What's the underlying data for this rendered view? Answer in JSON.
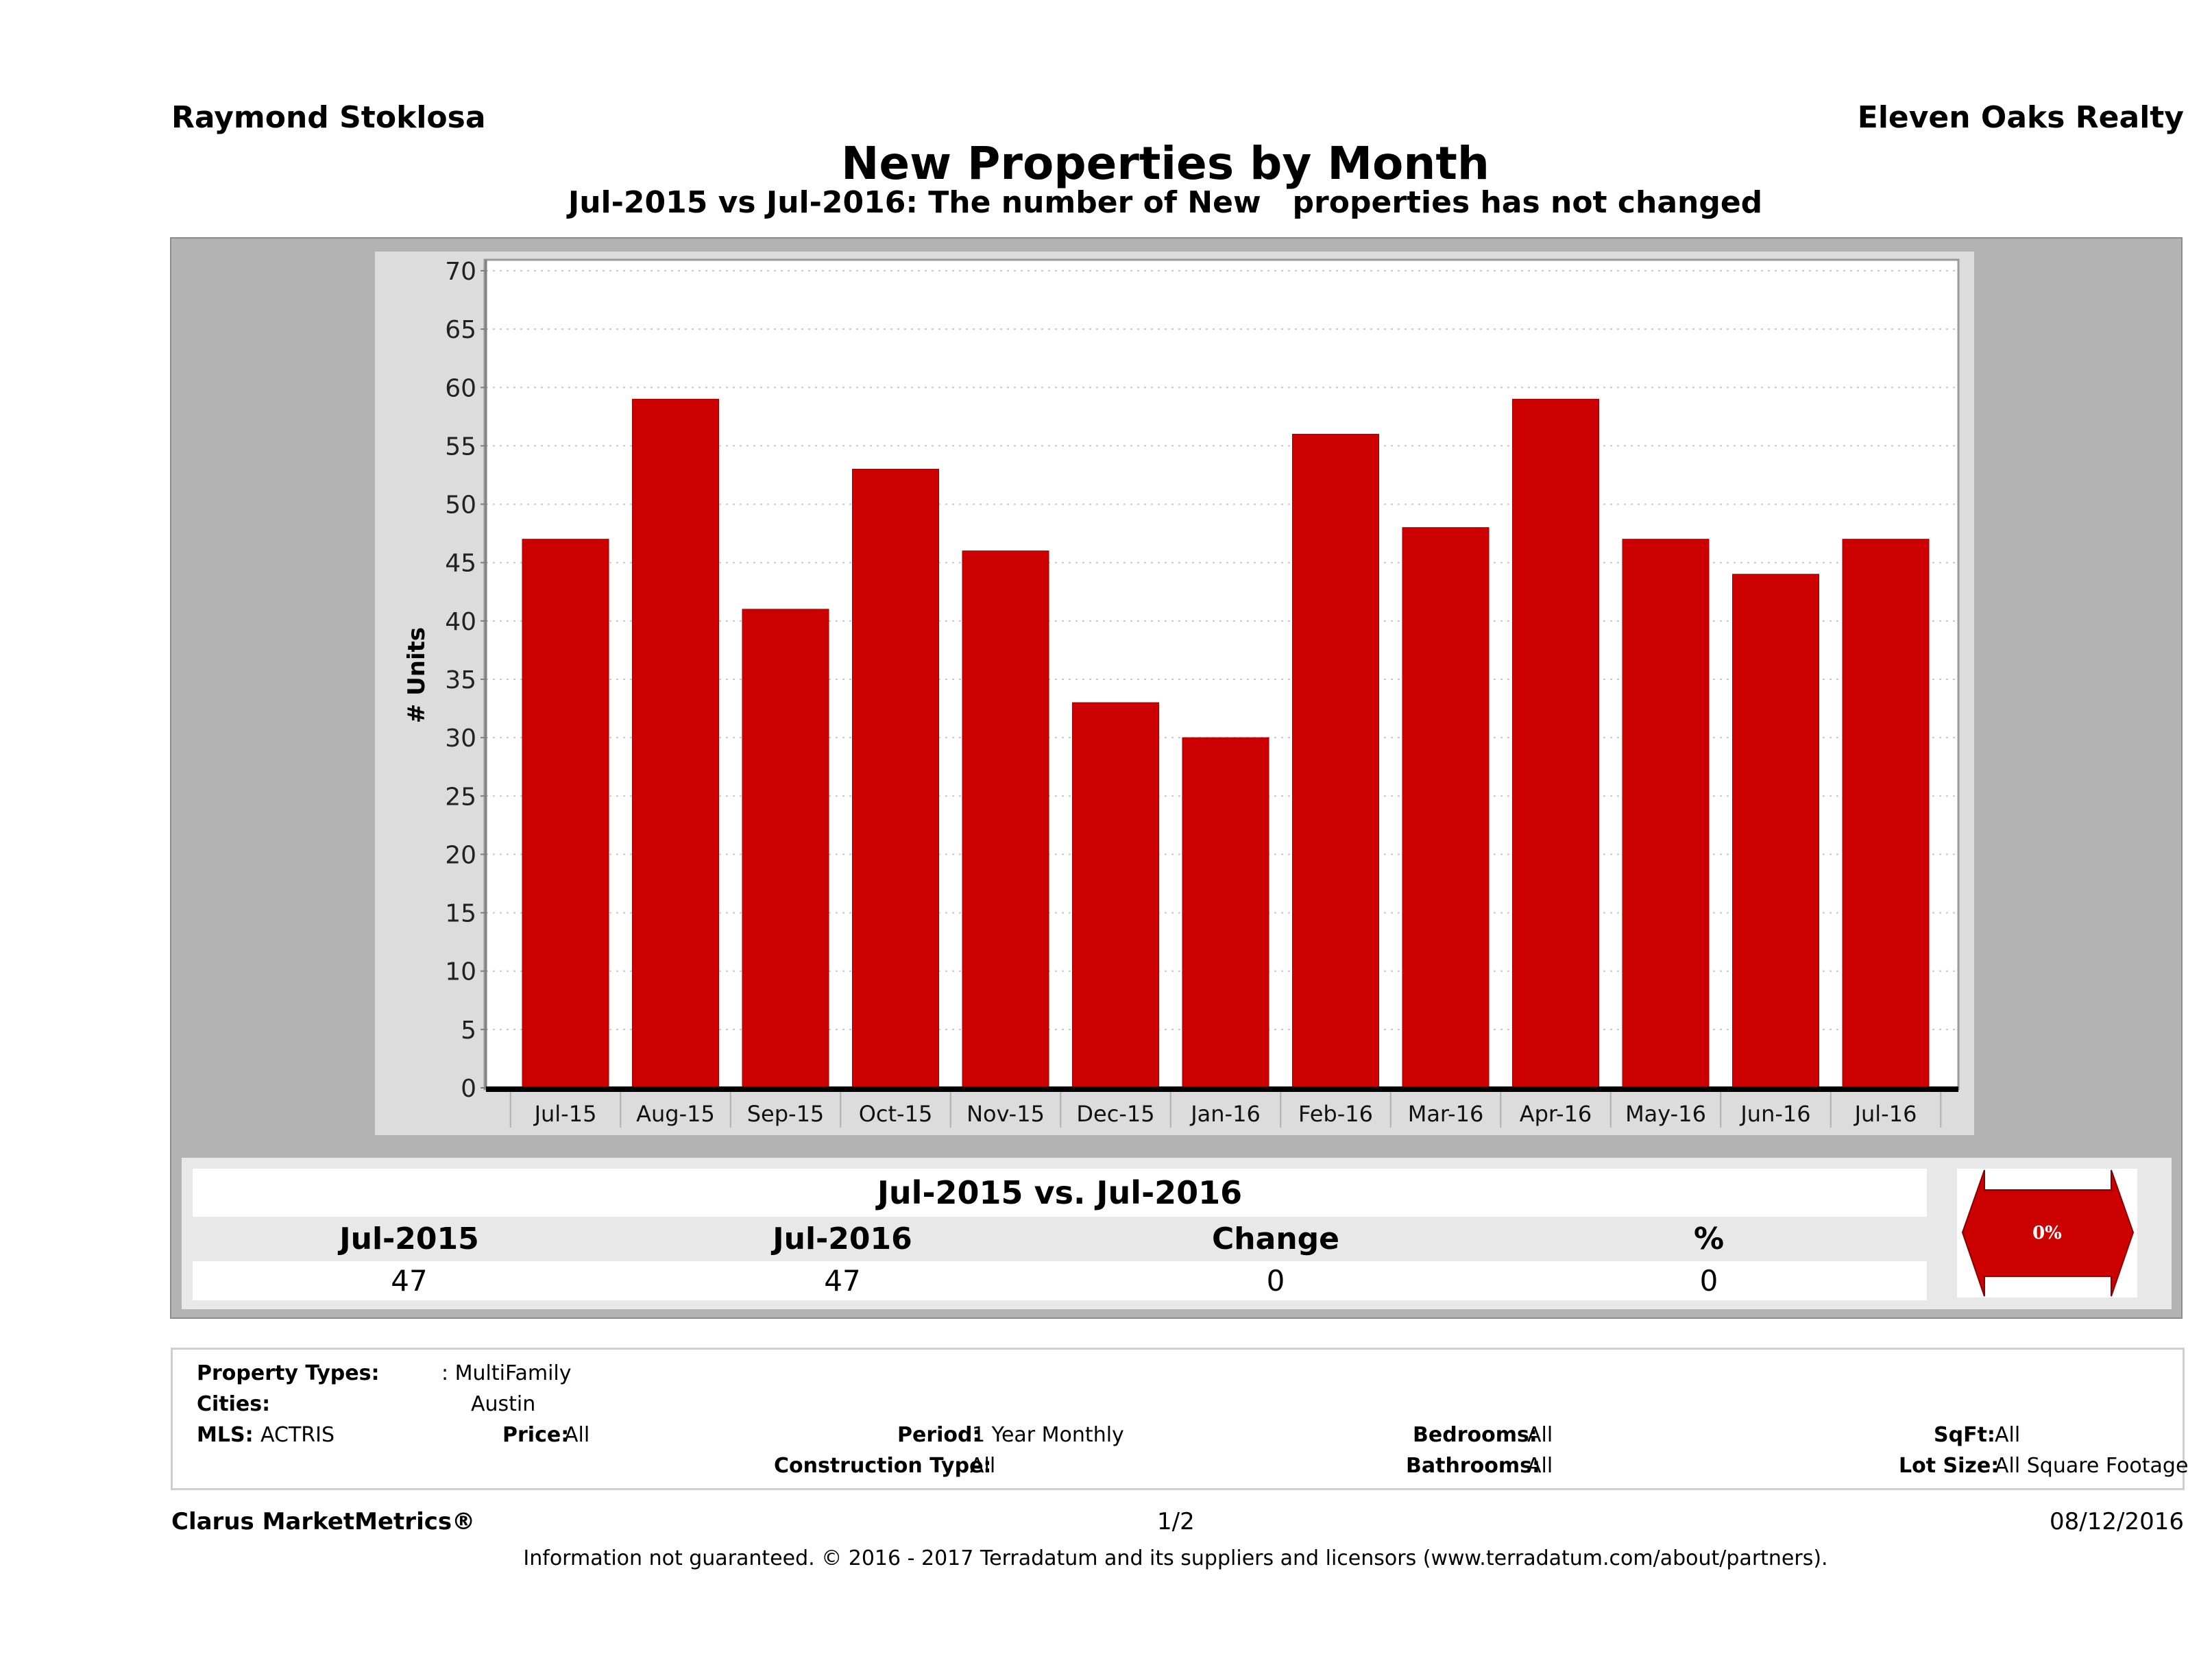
{
  "header": {
    "agent_name": "Raymond Stoklosa",
    "company_name": "Eleven Oaks Realty",
    "title": "New Properties by Month",
    "subtitle": "Jul-2015 vs Jul-2016: The number of New   properties has not changed"
  },
  "chart_data": {
    "type": "bar",
    "title": "New Properties by Month",
    "subtitle": "Jul-2015 vs Jul-2016: The number of New   properties has not changed",
    "xlabel": "",
    "ylabel": "# Units",
    "categories": [
      "Jul-15",
      "Aug-15",
      "Sep-15",
      "Oct-15",
      "Nov-15",
      "Dec-15",
      "Jan-16",
      "Feb-16",
      "Mar-16",
      "Apr-16",
      "May-16",
      "Jun-16",
      "Jul-16"
    ],
    "values": [
      47,
      59,
      41,
      53,
      46,
      33,
      30,
      56,
      48,
      59,
      47,
      44,
      47
    ],
    "ylim": [
      0,
      70
    ],
    "yticks": [
      0,
      5,
      10,
      15,
      20,
      25,
      30,
      35,
      40,
      45,
      50,
      55,
      60,
      65,
      70
    ],
    "grid": true,
    "legend": "none",
    "bar_color": "#cc0000"
  },
  "comparison": {
    "title": "Jul-2015 vs. Jul-2016",
    "columns": [
      {
        "label": "Jul-2015",
        "value": "47"
      },
      {
        "label": "Jul-2016",
        "value": "47"
      },
      {
        "label": "Change",
        "value": "0"
      },
      {
        "label": "%",
        "value": "0"
      }
    ],
    "indicator": {
      "label": "0%",
      "icon": "double-arrow-icon",
      "color": "#cc0000"
    }
  },
  "filters": {
    "property_types": {
      "label": "Property Types:",
      "value": ": MultiFamily"
    },
    "cities": {
      "label": "Cities:",
      "value": "Austin"
    },
    "mls": {
      "label": "MLS:",
      "value": "ACTRIS"
    },
    "price": {
      "label": "Price:",
      "value": "All"
    },
    "period": {
      "label": "Period:",
      "value": "1 Year Monthly"
    },
    "construction_type": {
      "label": "Construction Type:",
      "value": "All"
    },
    "bedrooms": {
      "label": "Bedrooms:",
      "value": "All"
    },
    "bathrooms": {
      "label": "Bathrooms:",
      "value": "All"
    },
    "sqft": {
      "label": "SqFt:",
      "value": "All"
    },
    "lot_size": {
      "label": "Lot Size:",
      "value": "All Square Footage"
    }
  },
  "footer": {
    "brand": "Clarus MarketMetrics®",
    "page": "1/2",
    "date": "08/12/2016",
    "disclaimer": "Information not guaranteed. © 2016 - 2017 Terradatum and its suppliers and licensors (www.terradatum.com/about/partners)."
  }
}
